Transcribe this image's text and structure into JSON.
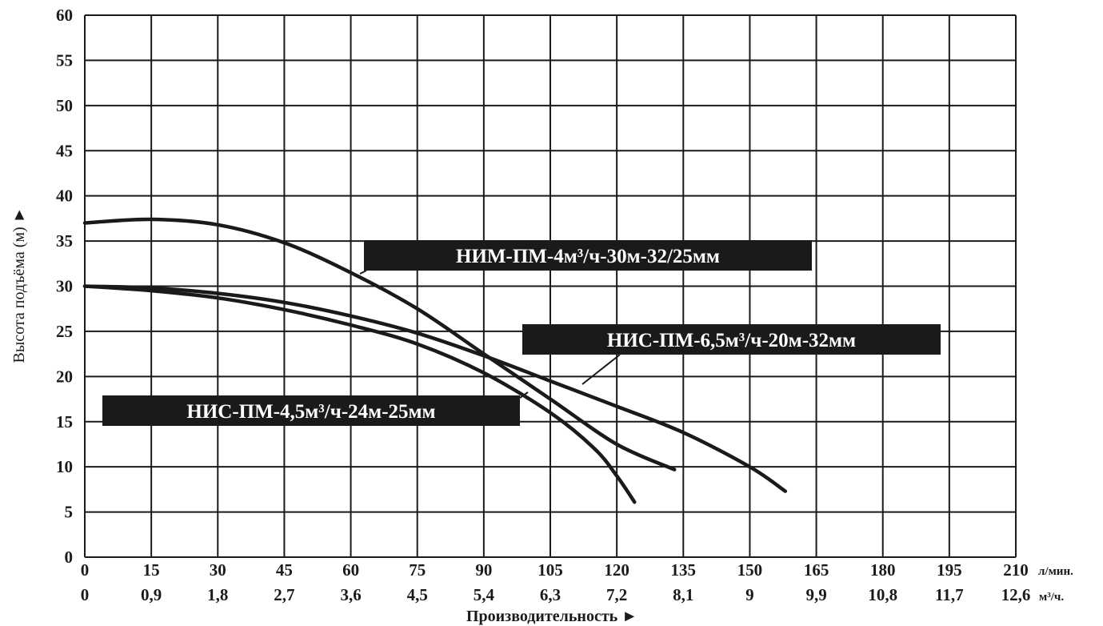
{
  "chart_data": {
    "type": "line",
    "xlabel": "Производительность ►",
    "ylabel": "Высота подъёма (м) ►",
    "x_unit_primary": "л/мин.",
    "x_unit_secondary": "м³/ч.",
    "xlim": [
      0,
      210
    ],
    "ylim": [
      0,
      60
    ],
    "x_ticks": [
      0,
      15,
      30,
      45,
      60,
      75,
      90,
      105,
      120,
      135,
      150,
      165,
      180,
      195,
      210
    ],
    "x_tick_labels_primary": [
      "0",
      "15",
      "30",
      "45",
      "60",
      "75",
      "90",
      "105",
      "120",
      "135",
      "150",
      "165",
      "180",
      "195",
      "210"
    ],
    "x_tick_labels_secondary": [
      "0",
      "0,9",
      "1,8",
      "2,7",
      "3,6",
      "4,5",
      "5,4",
      "6,3",
      "7,2",
      "8,1",
      "9",
      "9,9",
      "10,8",
      "11,7",
      "12,6"
    ],
    "y_ticks": [
      0,
      5,
      10,
      15,
      20,
      25,
      30,
      35,
      40,
      45,
      50,
      55,
      60
    ],
    "y_tick_labels": [
      "0",
      "5",
      "10",
      "15",
      "20",
      "25",
      "30",
      "35",
      "40",
      "45",
      "50",
      "55",
      "60"
    ],
    "grid": true,
    "series": [
      {
        "name": "НИМ-ПМ-4м³/ч-30м-32/25мм",
        "x": [
          0,
          15,
          30,
          45,
          60,
          75,
          90,
          105,
          120,
          133
        ],
        "y": [
          37,
          37.4,
          36.8,
          34.8,
          31.5,
          27.5,
          22.5,
          17.5,
          12.5,
          9.7
        ]
      },
      {
        "name": "НИС-ПМ-6,5м³/ч-20м-32мм",
        "x": [
          0,
          15,
          30,
          45,
          60,
          75,
          90,
          105,
          120,
          135,
          150,
          158
        ],
        "y": [
          30,
          29.8,
          29.2,
          28.2,
          26.7,
          24.8,
          22.3,
          19.5,
          16.7,
          13.8,
          10,
          7.3
        ]
      },
      {
        "name": "НИС-ПМ-4,5м³/ч-24м-25мм",
        "x": [
          0,
          15,
          30,
          45,
          60,
          75,
          90,
          105,
          115,
          120,
          124
        ],
        "y": [
          30,
          29.5,
          28.7,
          27.4,
          25.7,
          23.6,
          20.4,
          16,
          12,
          9,
          6.1
        ]
      }
    ]
  }
}
